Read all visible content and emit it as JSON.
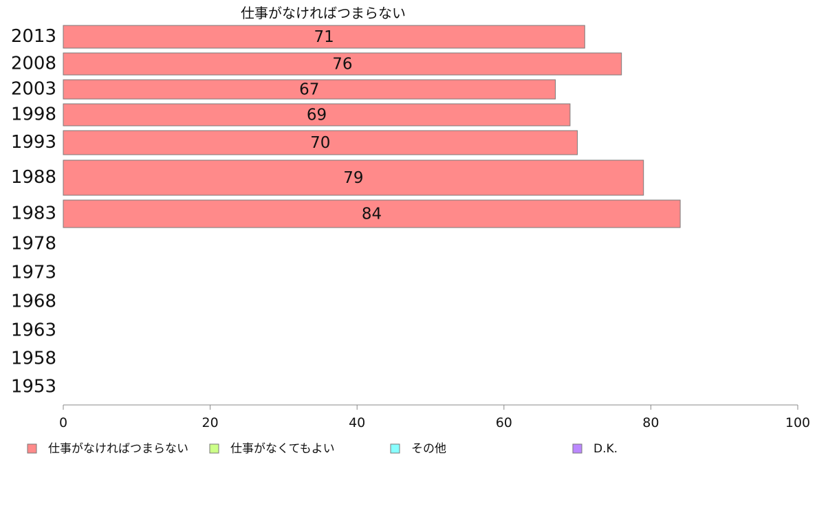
{
  "chart_data": {
    "type": "bar",
    "orientation": "horizontal",
    "title": "仕事がなければつまらない",
    "categories": [
      "2013",
      "2008",
      "2003",
      "1998",
      "1993",
      "1988",
      "1983",
      "1978",
      "1973",
      "1968",
      "1963",
      "1958",
      "1953"
    ],
    "series": [
      {
        "name": "仕事がなければつまらない",
        "color": "#ff8a8a",
        "values": [
          71,
          76,
          67,
          69,
          70,
          79,
          84,
          null,
          null,
          null,
          null,
          null,
          null
        ]
      }
    ],
    "xlim": [
      0,
      100
    ],
    "xticks": [
      "0",
      "20",
      "40",
      "60",
      "80",
      "100"
    ],
    "grid": false,
    "legend": {
      "position": "bottom",
      "items": [
        {
          "label": "仕事がなければつまらない",
          "color": "#ff8a8a"
        },
        {
          "label": "仕事がなくてもよい",
          "color": "#ccff88"
        },
        {
          "label": "その他",
          "color": "#88ffff"
        },
        {
          "label": "D.K.",
          "color": "#bb88ff"
        }
      ]
    }
  }
}
